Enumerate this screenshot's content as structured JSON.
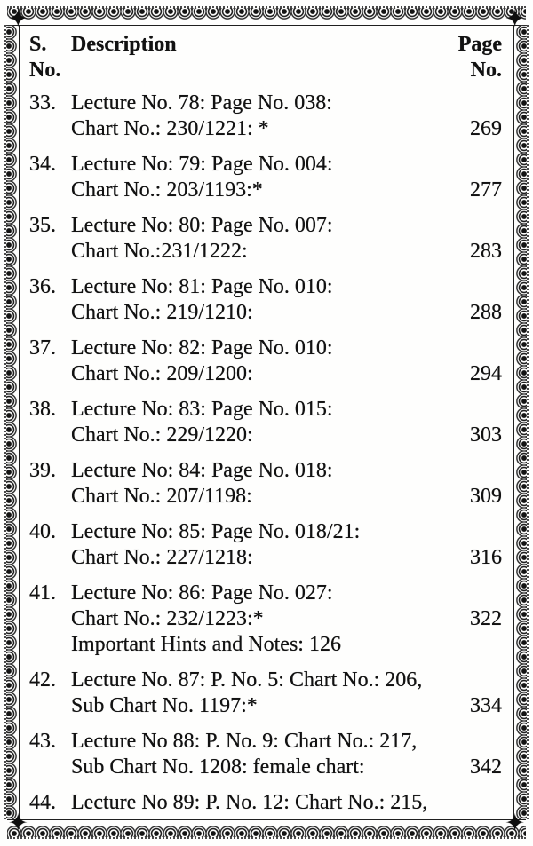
{
  "icons": {
    "corner_star": "✦"
  },
  "header": {
    "sno_line1": "S.",
    "sno_line2": "No.",
    "description": "Description",
    "page_line1": "Page",
    "page_line2": "No."
  },
  "entries": [
    {
      "no": "33.",
      "lines": [
        "Lecture No. 78: Page No. 038:",
        "Chart No.: 230/1221: *"
      ],
      "page": "269"
    },
    {
      "no": "34.",
      "lines": [
        "Lecture No: 79: Page No. 004:",
        "Chart No.: 203/1193:*"
      ],
      "page": "277"
    },
    {
      "no": "35.",
      "lines": [
        "Lecture No: 80: Page No. 007:",
        "Chart No.:231/1222:"
      ],
      "page": "283"
    },
    {
      "no": "36.",
      "lines": [
        "Lecture No: 81: Page No. 010:",
        "Chart No.: 219/1210:"
      ],
      "page": "288"
    },
    {
      "no": "37.",
      "lines": [
        "Lecture No: 82: Page No. 010:",
        "Chart No.: 209/1200:"
      ],
      "page": "294"
    },
    {
      "no": "38.",
      "lines": [
        "Lecture No: 83: Page No. 015:",
        "Chart No.: 229/1220:"
      ],
      "page": "303"
    },
    {
      "no": "39.",
      "lines": [
        "Lecture No: 84: Page No. 018:",
        "Chart No.: 207/1198:"
      ],
      "page": "309"
    },
    {
      "no": "40.",
      "lines": [
        "Lecture No: 85: Page No. 018/21:",
        "Chart No.: 227/1218:"
      ],
      "page": "316"
    },
    {
      "no": "41.",
      "lines": [
        "Lecture No: 86: Page No. 027:",
        "Chart No.: 232/1223:*",
        "Important Hints and Notes: 126"
      ],
      "page": "322"
    },
    {
      "no": "42.",
      "lines": [
        "Lecture No. 87: P. No. 5: Chart No.: 206,",
        "Sub Chart No. 1197:*"
      ],
      "page": "334"
    },
    {
      "no": "43.",
      "lines": [
        "Lecture No 88: P. No. 9: Chart No.: 217,",
        "Sub Chart No. 1208: female chart:"
      ],
      "page": "342"
    },
    {
      "no": "44.",
      "lines": [
        "Lecture No 89: P. No. 12: Chart No.: 215,"
      ],
      "page": ""
    }
  ]
}
